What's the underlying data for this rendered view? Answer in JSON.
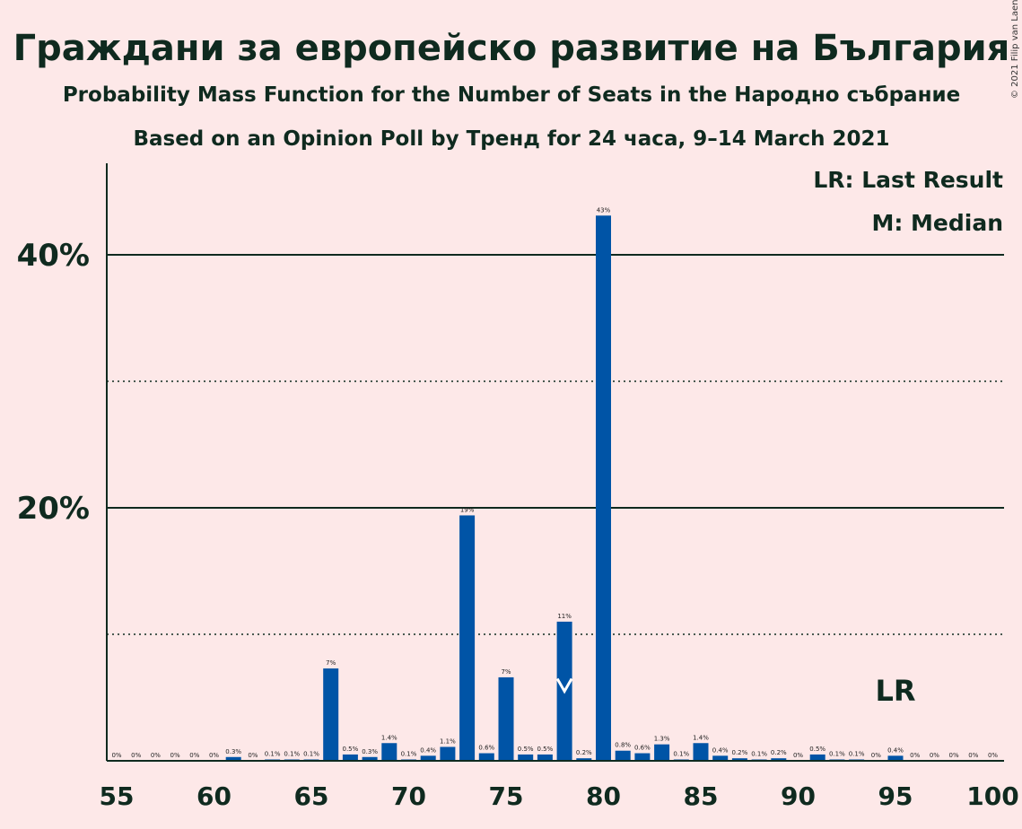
{
  "chart_data": {
    "type": "bar",
    "title": "Граждани за европейско развитие на България",
    "subtitle": "Probability Mass Function for the Number of Seats in the Народно събрание",
    "subtitle2": "Based on an Opinion Poll by Тренд for 24 часа, 9–14 March 2021",
    "copyright": "© 2021 Filip van Laenen",
    "legend": {
      "lr": "LR: Last Result",
      "m": "M: Median",
      "placement": "top-right"
    },
    "xlim": [
      55,
      100
    ],
    "ylim": [
      0,
      46
    ],
    "x_ticks": [
      "55",
      "60",
      "65",
      "70",
      "75",
      "80",
      "85",
      "90",
      "95",
      "100"
    ],
    "y_ticks": [
      {
        "value": 20,
        "label": "20%"
      },
      {
        "value": 40,
        "label": "40%"
      }
    ],
    "minor_gridlines": [
      10,
      30
    ],
    "bar_color": "#0054A6",
    "x": [
      55,
      56,
      57,
      58,
      59,
      60,
      61,
      62,
      63,
      64,
      65,
      66,
      67,
      68,
      69,
      70,
      71,
      72,
      73,
      74,
      75,
      76,
      77,
      78,
      79,
      80,
      81,
      82,
      83,
      84,
      85,
      86,
      87,
      88,
      89,
      90,
      91,
      92,
      93,
      94,
      95,
      96,
      97,
      98,
      99,
      100
    ],
    "values": [
      0,
      0,
      0,
      0,
      0,
      0,
      0.3,
      0,
      0.1,
      0.1,
      0.1,
      7.3,
      0.5,
      0.3,
      1.4,
      0.1,
      0.4,
      1.1,
      19.4,
      0.6,
      6.6,
      0.5,
      0.5,
      11.0,
      0.2,
      43.1,
      0.8,
      0.6,
      1.3,
      0.1,
      1.4,
      0.4,
      0.2,
      0.1,
      0.2,
      0,
      0.5,
      0.1,
      0.1,
      0,
      0.4,
      0,
      0,
      0,
      0,
      0
    ],
    "labels": [
      "0%",
      "0%",
      "0%",
      "0%",
      "0%",
      "0%",
      "0.3%",
      "0%",
      "0.1%",
      "0.1%",
      "0.1%",
      "7%",
      "0.5%",
      "0.3%",
      "1.4%",
      "0.1%",
      "0.4%",
      "1.1%",
      "19%",
      "0.6%",
      "7%",
      "0.5%",
      "0.5%",
      "11%",
      "0.2%",
      "43%",
      "0.8%",
      "0.6%",
      "1.3%",
      "0.1%",
      "1.4%",
      "0.4%",
      "0.2%",
      "0.1%",
      "0.2%",
      "0%",
      "0.5%",
      "0.1%",
      "0.1%",
      "0%",
      "0.4%",
      "0%",
      "0%",
      "0%",
      "0%",
      "0%"
    ],
    "median_seat": 78,
    "last_result_seat": 95,
    "last_result_label": "LR"
  }
}
